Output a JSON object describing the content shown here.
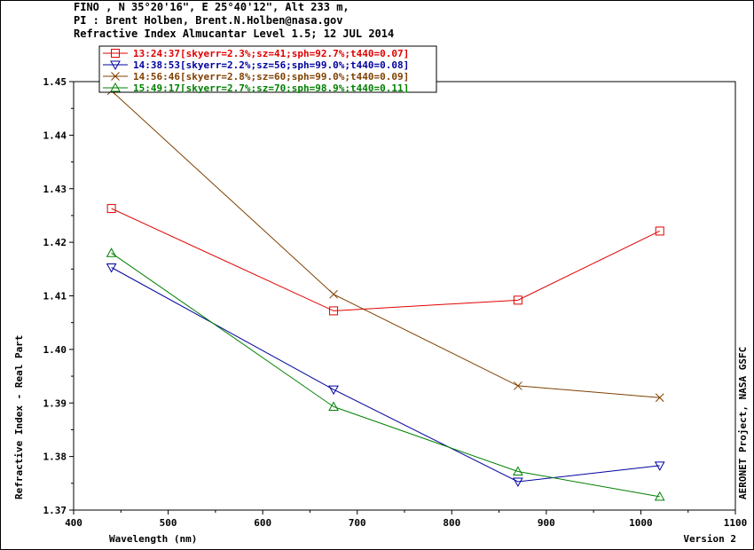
{
  "header": {
    "line1": "FINO , N 35°20'16\", E 25°40'12\", Alt 233 m,",
    "line2": "PI : Brent Holben, Brent.N.Holben@nasa.gov",
    "line3": "Refractive Index Almucantar Level 1.5; 12 JUL 2014"
  },
  "chart_data": {
    "type": "line",
    "xlabel": "Wavelength (nm)",
    "ylabel": "Refractive Index - Real Part",
    "right_label": "AERONET Project, NASA GSFC",
    "footer_right": "Version 2",
    "xlim": [
      400,
      1100
    ],
    "ylim": [
      1.37,
      1.45
    ],
    "x_ticks": [
      "400",
      "500",
      "600",
      "700",
      "800",
      "900",
      "1000",
      "1100"
    ],
    "y_ticks": [
      "1.37",
      "1.38",
      "1.39",
      "1.40",
      "1.41",
      "1.42",
      "1.43",
      "1.44",
      "1.45"
    ],
    "legend_position": "top-left",
    "x": [
      440,
      675,
      870,
      1020
    ],
    "series": [
      {
        "name": "13:24:37[skyerr=2.3%;sz=41;sph=92.7%;t440=0.07]",
        "color": "#e00000",
        "marker": "square",
        "values": [
          1.4263,
          1.4072,
          1.4092,
          1.4221
        ]
      },
      {
        "name": "14:38:53[skyerr=2.2%;sz=56;sph=99.0%;t440=0.08]",
        "color": "#0000a0",
        "marker": "triangle-down",
        "values": [
          1.4153,
          1.3925,
          1.3753,
          1.3783
        ]
      },
      {
        "name": "14:56:46[skyerr=2.8%;sz=60;sph=99.0%;t440=0.09]",
        "color": "#804000",
        "marker": "x",
        "values": [
          1.4483,
          1.4103,
          1.3932,
          1.391
        ]
      },
      {
        "name": "15:49:17[skyerr=2.7%;sz=70;sph=98.9%;t440=0.11]",
        "color": "#008000",
        "marker": "triangle-up",
        "values": [
          1.418,
          1.3893,
          1.3772,
          1.3725
        ]
      }
    ]
  }
}
